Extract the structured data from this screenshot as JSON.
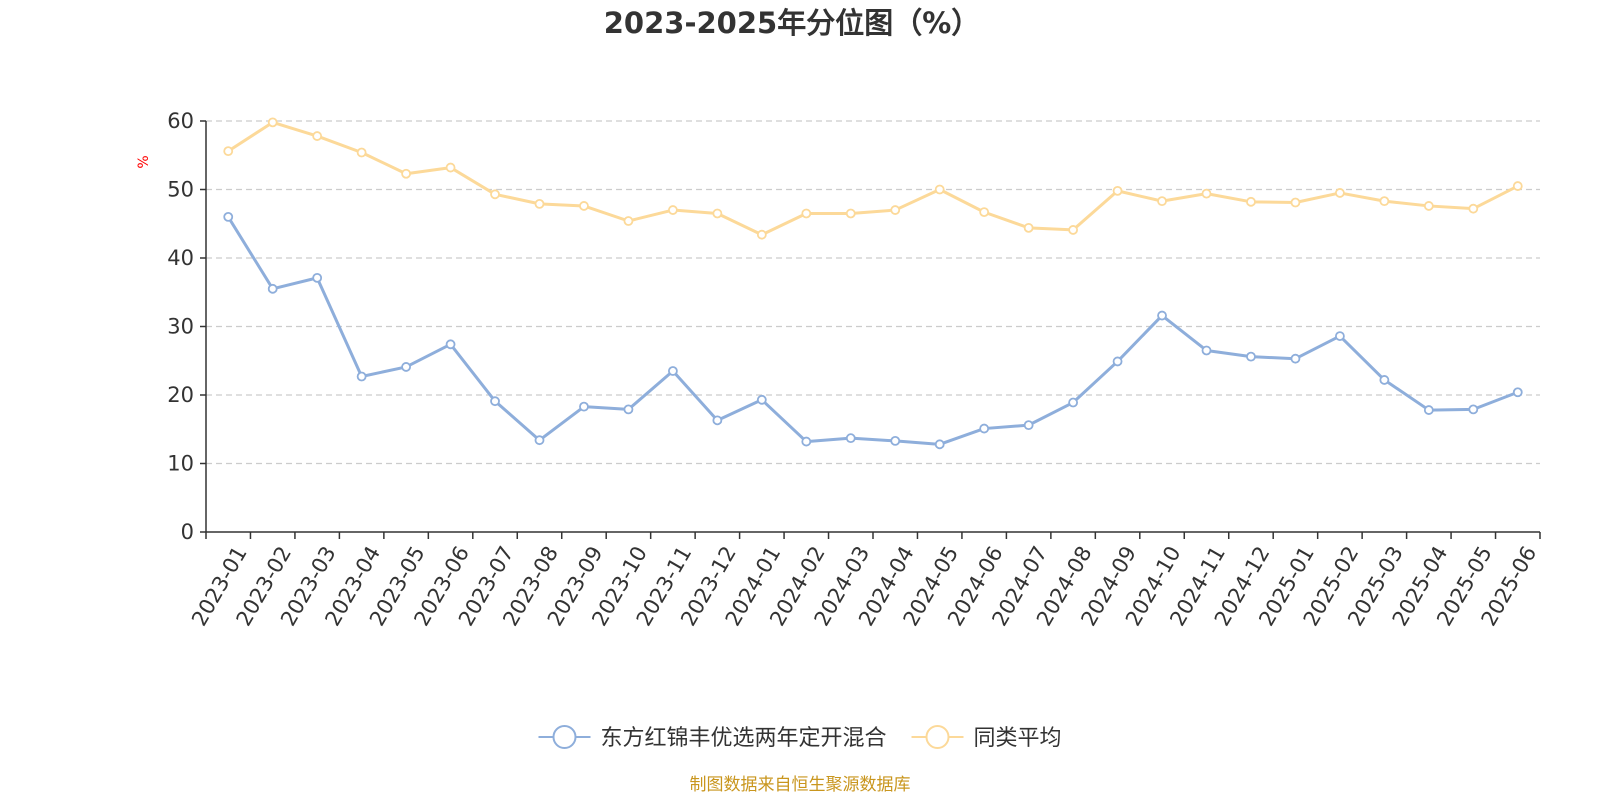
{
  "chart_data": {
    "type": "line",
    "title": "2023-2025年分位图（%）",
    "ylabel": "%",
    "ylim": [
      0,
      60
    ],
    "yticks": [
      "0",
      "10",
      "20",
      "30",
      "40",
      "50",
      "60"
    ],
    "grid": true,
    "legend_position": "bottom-center",
    "categories": [
      "2023-01",
      "2023-02",
      "2023-03",
      "2023-04",
      "2023-05",
      "2023-06",
      "2023-07",
      "2023-08",
      "2023-09",
      "2023-10",
      "2023-11",
      "2023-12",
      "2024-01",
      "2024-02",
      "2024-03",
      "2024-04",
      "2024-05",
      "2024-06",
      "2024-07",
      "2024-08",
      "2024-09",
      "2024-10",
      "2024-11",
      "2024-12",
      "2025-01",
      "2025-02",
      "2025-03",
      "2025-04",
      "2025-05",
      "2025-06"
    ],
    "series": [
      {
        "name": "东方红锦丰优选两年定开混合",
        "color": "#8eaedb",
        "values": [
          46.0,
          35.5,
          37.1,
          22.7,
          24.1,
          27.4,
          19.1,
          13.4,
          18.3,
          17.9,
          23.5,
          16.3,
          19.3,
          13.2,
          13.7,
          13.3,
          12.8,
          15.1,
          15.6,
          18.9,
          24.9,
          31.6,
          26.5,
          25.6,
          25.3,
          28.6,
          22.2,
          17.8,
          17.9,
          20.4
        ]
      },
      {
        "name": "同类平均",
        "color": "#fcd999",
        "values": [
          55.6,
          59.8,
          57.8,
          55.4,
          52.3,
          53.2,
          49.3,
          47.9,
          47.6,
          45.4,
          47.0,
          46.5,
          43.4,
          46.5,
          46.5,
          47.0,
          50.0,
          46.7,
          44.4,
          44.1,
          49.8,
          48.3,
          49.4,
          48.2,
          48.1,
          49.5,
          48.3,
          47.6,
          47.2,
          50.5
        ]
      }
    ]
  },
  "footer": {
    "source": "制图数据来自恒生聚源数据库"
  }
}
